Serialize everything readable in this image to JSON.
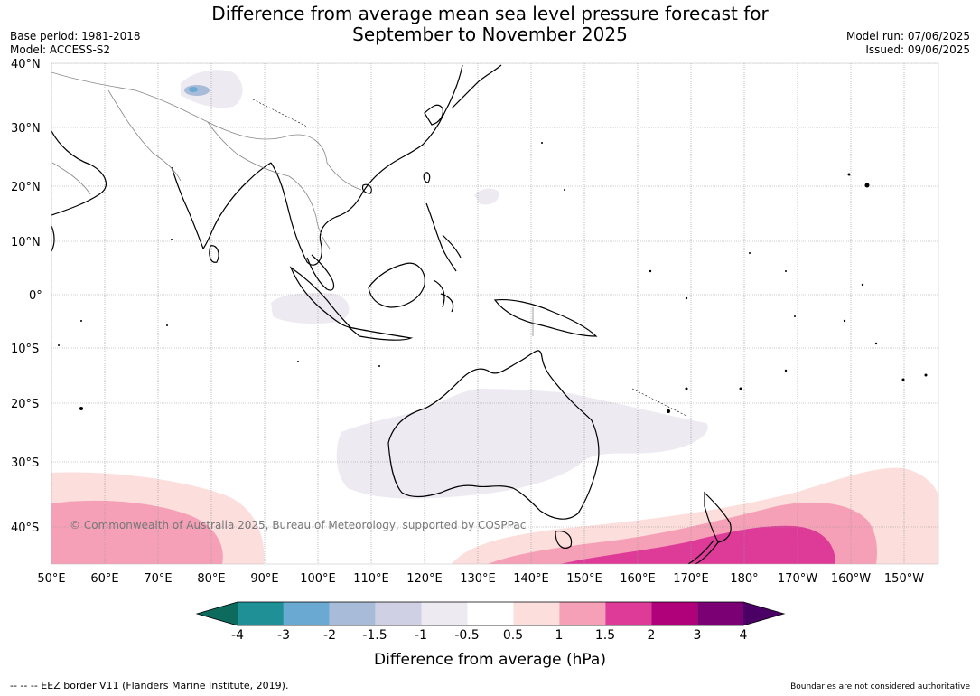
{
  "title_line1": "Difference from average mean sea level pressure forecast for",
  "title_line2": "September to November 2025",
  "meta_left": [
    "Base period: 1981-2018",
    "Model: ACCESS-S2"
  ],
  "meta_right": [
    "Model run: 07/06/2025",
    "Issued: 09/06/2025"
  ],
  "lat_labels": [
    "40°N",
    "30°N",
    "20°N",
    "10°N",
    "0°",
    "10°S",
    "20°S",
    "30°S",
    "40°S"
  ],
  "lon_labels": [
    "50°E",
    "60°E",
    "70°E",
    "80°E",
    "90°E",
    "100°E",
    "110°E",
    "120°E",
    "130°E",
    "140°E",
    "150°E",
    "160°E",
    "170°E",
    "180°",
    "170°W",
    "160°W",
    "150°W"
  ],
  "copyright": "© Commonwealth of Australia 2025, Bureau of Meteorology, supported by COSPPac",
  "colorbar": {
    "title": "Difference from average (hPa)",
    "ticks": [
      "-4",
      "-3",
      "-2",
      "-1.5",
      "-1",
      "-0.5",
      "0.5",
      "1",
      "1.5",
      "2",
      "3",
      "4"
    ],
    "colors": [
      "#0d6b5e",
      "#1f9096",
      "#6aaad2",
      "#a8bcd9",
      "#cfd0e4",
      "#eeeaf2",
      "#ffffff",
      "#fcdedd",
      "#f6a0b8",
      "#de3a98",
      "#b0007a",
      "#7a0073",
      "#4b0066"
    ]
  },
  "footer_left": "--  --  -- EEZ border V11 (Flanders Marine Institute, 2019).",
  "footer_right": "Boundaries are not considered authoritative"
}
